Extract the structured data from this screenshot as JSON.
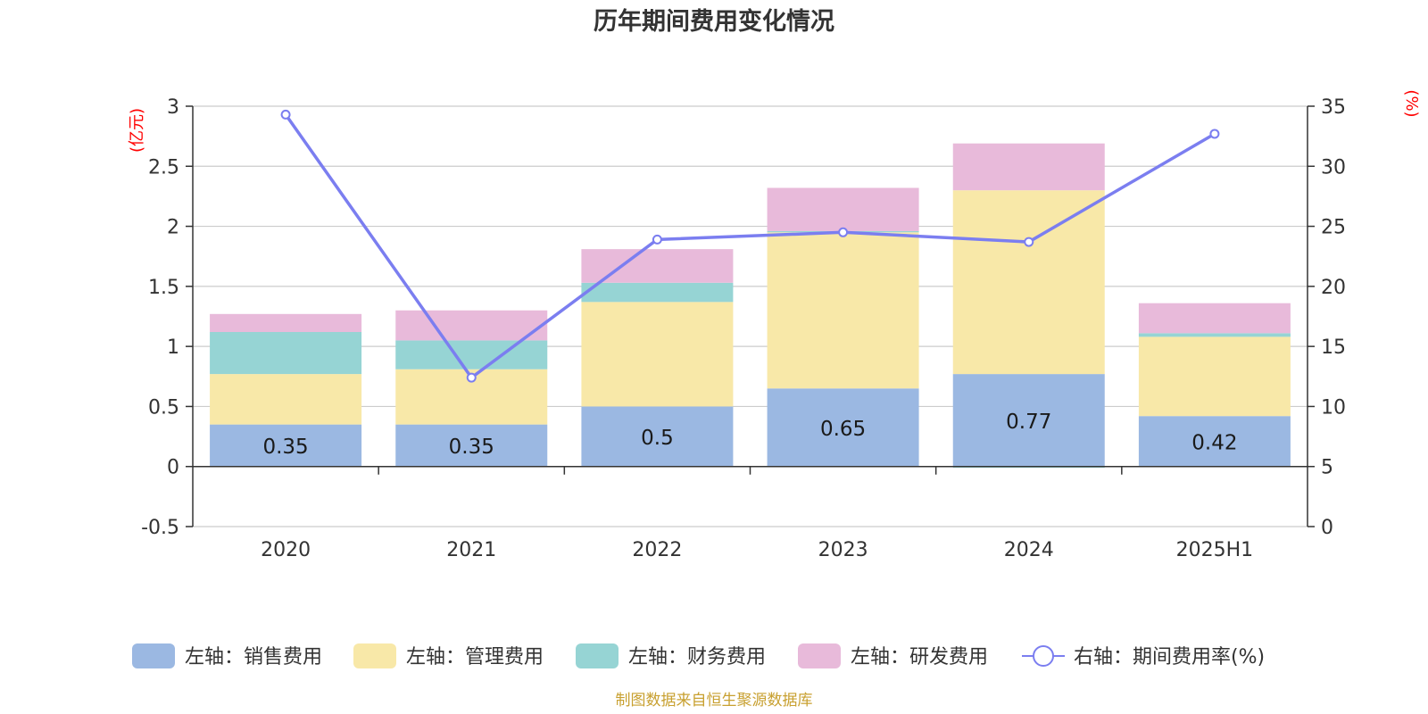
{
  "chart_data": {
    "type": "bar",
    "title": "历年期间费用变化情况",
    "categories": [
      "2020",
      "2021",
      "2022",
      "2023",
      "2024",
      "2025H1"
    ],
    "left_axis": {
      "unit": "(亿元)",
      "ylim": [
        -0.5,
        3
      ],
      "ticks": [
        "-0.5",
        "0",
        "0.5",
        "1",
        "1.5",
        "2",
        "2.5",
        "3"
      ]
    },
    "right_axis": {
      "unit": "(%)",
      "ylim": [
        0,
        35
      ],
      "ticks": [
        "0",
        "5",
        "10",
        "15",
        "20",
        "25",
        "30",
        "35"
      ]
    },
    "stacked": true,
    "series": [
      {
        "name": "左轴：销售费用",
        "axis": "left",
        "color": "#9bb8e2",
        "values": [
          0.35,
          0.35,
          0.5,
          0.65,
          0.77,
          0.42
        ],
        "data_labels": [
          "0.35",
          "0.35",
          "0.5",
          "0.65",
          "0.77",
          "0.42"
        ]
      },
      {
        "name": "左轴：管理费用",
        "axis": "left",
        "color": "#f8e8a8",
        "values": [
          0.42,
          0.46,
          0.87,
          1.3,
          1.53,
          0.66
        ]
      },
      {
        "name": "左轴：财务费用",
        "axis": "left",
        "color": "#96d4d4",
        "values": [
          0.35,
          0.24,
          0.16,
          0.01,
          -0.01,
          0.03
        ]
      },
      {
        "name": "左轴：研发费用",
        "axis": "left",
        "color": "#e8bada",
        "values": [
          0.15,
          0.25,
          0.28,
          0.36,
          0.39,
          0.25
        ]
      },
      {
        "name": "右轴：期间费用率(%)",
        "axis": "right",
        "type": "line",
        "color": "#7b7ef0",
        "values": [
          34.3,
          12.4,
          23.9,
          24.5,
          23.7,
          32.7
        ]
      }
    ],
    "grid": true,
    "legend_position": "bottom"
  },
  "source_note": "制图数据来自恒生聚源数据库"
}
